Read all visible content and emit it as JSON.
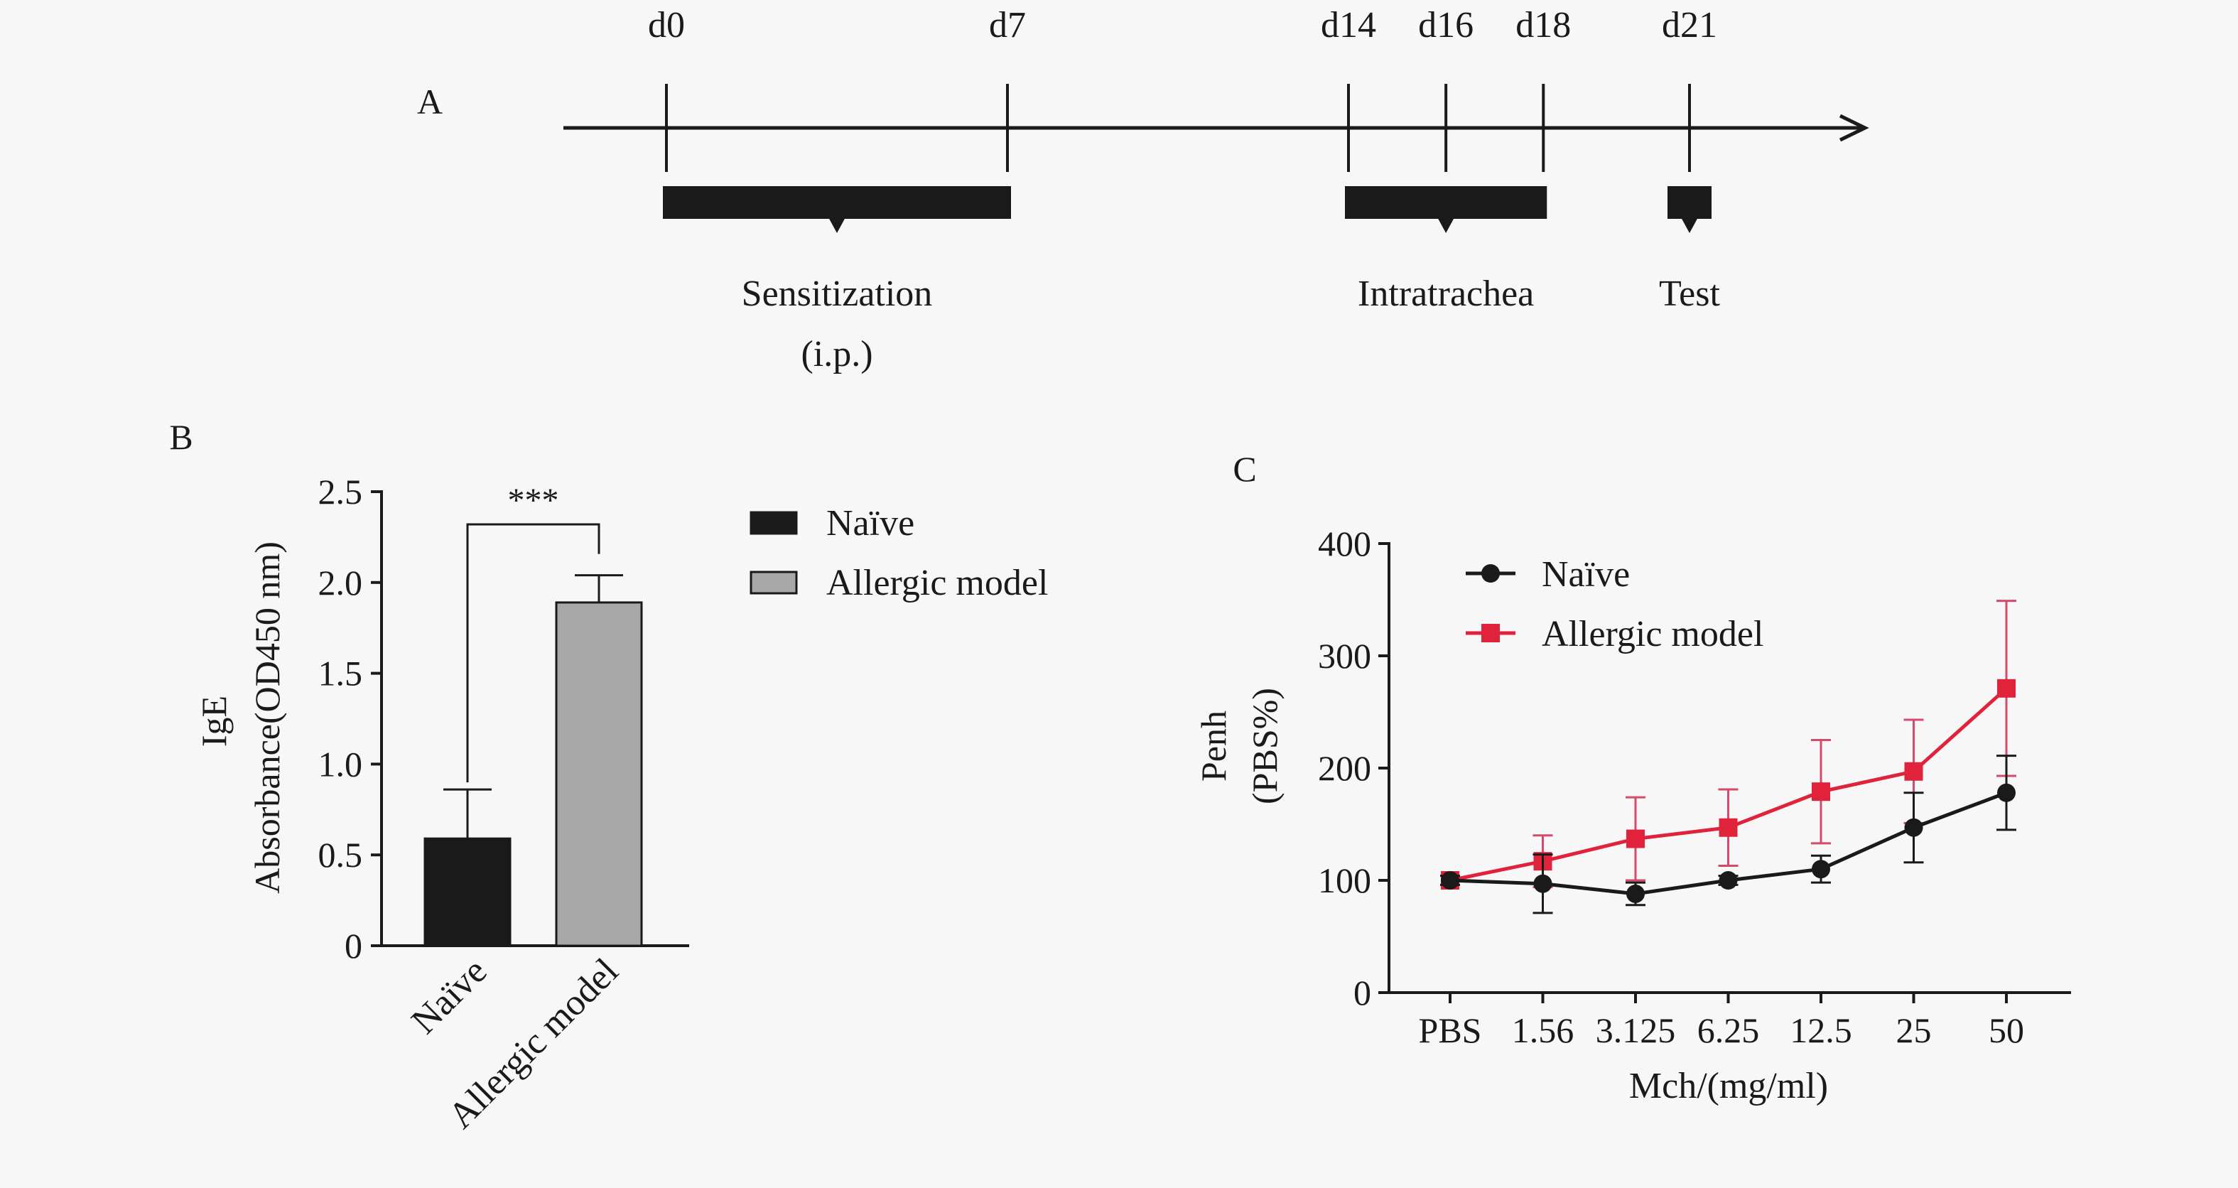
{
  "colors": {
    "background": "#f7f7f7",
    "ink": "#1a1a1a",
    "naive_bar": "#1a1a1a",
    "allergic_bar": "#a8a8a8",
    "naive_line": "#1a1a1a",
    "allergic_line": "#e0223a",
    "allergic_errorbar": "#d44a6a"
  },
  "chart_data": [
    {
      "type": "timeline",
      "panel_label": "A",
      "days": [
        {
          "label": "d0",
          "day": 0
        },
        {
          "label": "d7",
          "day": 7
        },
        {
          "label": "d14",
          "day": 14
        },
        {
          "label": "d16",
          "day": 16
        },
        {
          "label": "d18",
          "day": 18
        },
        {
          "label": "d21",
          "day": 21
        }
      ],
      "phases": [
        {
          "label": "Sensitization",
          "sublabel": "(i.p.)",
          "start_day": 0,
          "end_day": 7
        },
        {
          "label": "Intratrachea",
          "sublabel": "",
          "start_day": 14,
          "end_day": 18
        },
        {
          "label": "Test",
          "sublabel": "",
          "start_day": 21,
          "end_day": 21
        }
      ]
    },
    {
      "type": "bar",
      "panel_label": "B",
      "title": "",
      "ylabel": "IgE",
      "ylabel2": "Absorbance(OD450 nm)",
      "ylim": [
        0,
        2.5
      ],
      "yticks": [
        0,
        0.5,
        1.0,
        1.5,
        2.0,
        2.5
      ],
      "ytick_labels": [
        "0",
        "0.5",
        "1.0",
        "1.5",
        "2.0",
        "2.5"
      ],
      "categories": [
        "Naïve",
        "Allergic model"
      ],
      "values": [
        0.59,
        1.89
      ],
      "errors": [
        0.27,
        0.15
      ],
      "significance": "***",
      "legend": [
        {
          "name": "Naïve",
          "color": "#1a1a1a"
        },
        {
          "name": "Allergic model",
          "color": "#a8a8a8"
        }
      ],
      "legend_position": "right"
    },
    {
      "type": "line",
      "panel_label": "C",
      "title": "",
      "xlabel": "Mch/(mg/ml)",
      "ylabel": "Penh",
      "ylabel2": "(PBS%)",
      "categories": [
        "PBS",
        "1.56",
        "3.125",
        "6.25",
        "12.5",
        "25",
        "50"
      ],
      "ylim": [
        0,
        400
      ],
      "yticks": [
        0,
        100,
        200,
        300,
        400
      ],
      "ytick_labels": [
        "0",
        "100",
        "200",
        "300",
        "400"
      ],
      "legend_position": "top-left",
      "series": [
        {
          "name": "Naïve",
          "marker": "circle",
          "color": "#1a1a1a",
          "values": [
            100,
            97,
            88,
            100,
            110,
            147,
            178
          ],
          "errors": [
            4,
            26,
            10,
            4,
            12,
            31,
            33
          ]
        },
        {
          "name": "Allergic model",
          "marker": "square",
          "color": "#e0223a",
          "values": [
            100,
            117,
            137,
            147,
            179,
            197,
            271
          ],
          "errors": [
            4,
            23,
            37,
            34,
            46,
            46,
            78
          ]
        }
      ]
    }
  ]
}
